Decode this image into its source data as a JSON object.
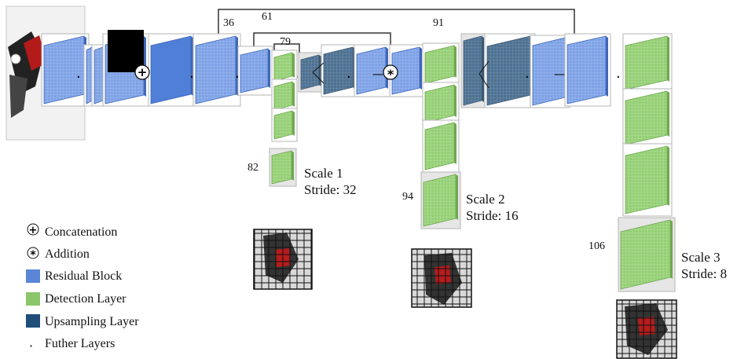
{
  "colors": {
    "residual": "#5a86d8",
    "detection": "#8cc66a",
    "upsampling": "#4f7191",
    "line": "#333333"
  },
  "layer_numbers": {
    "l36": "36",
    "l61": "61",
    "l79": "79",
    "l91": "91",
    "l82": "82",
    "l94": "94",
    "l106": "106"
  },
  "scales": {
    "s1": {
      "name": "Scale 1",
      "stride": "Stride: 32"
    },
    "s2": {
      "name": "Scale 2",
      "stride": "Stride: 16"
    },
    "s3": {
      "name": "Scale 3",
      "stride": "Stride: 8"
    }
  },
  "legend": {
    "concat_symbol": "+",
    "concat": "Concatenation",
    "add_symbol": "*",
    "add": "Addition",
    "residual": "Residual Block",
    "detection": "Detection Layer",
    "upsampling": "Upsampling Layer",
    "further_symbol": "·",
    "further": "Futher Layers"
  },
  "ops": {
    "concat_symbol": "+",
    "add_symbol": "*",
    "dot": "·",
    "dash": "—"
  }
}
